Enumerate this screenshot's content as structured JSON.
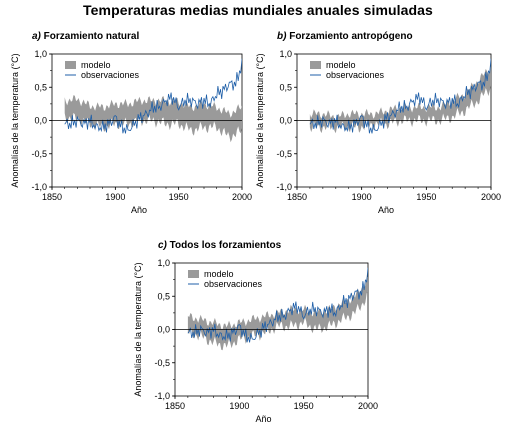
{
  "title": "Temperaturas medias mundiales anuales simuladas",
  "colors": {
    "model": "#9a9a9a",
    "observations": "#1f5fa8"
  },
  "chart_data": [
    {
      "type": "area",
      "panel_letter": "a)",
      "title": "Forzamiento natural",
      "xlabel": "Año",
      "ylabel": "Anomalías de la temperatura (°C)",
      "xlim": [
        1850,
        2000
      ],
      "ylim": [
        -1.0,
        1.0
      ],
      "xticks": [
        "1850",
        "1900",
        "1950",
        "2000"
      ],
      "yticks": [
        "-1,0",
        "-0,5",
        "0,0",
        "0,5",
        "1,0"
      ],
      "legend": [
        "modelo",
        "observaciones"
      ],
      "series": [
        {
          "name": "modelo",
          "kind": "band",
          "x": [
            1860,
            1870,
            1880,
            1890,
            1900,
            1910,
            1920,
            1930,
            1940,
            1950,
            1960,
            1970,
            1980,
            1990,
            2000
          ],
          "lower": [
            0.05,
            0.02,
            -0.05,
            -0.1,
            -0.05,
            -0.05,
            0.0,
            0.0,
            -0.05,
            -0.05,
            -0.15,
            -0.1,
            -0.1,
            -0.25,
            -0.15
          ],
          "upper": [
            0.3,
            0.32,
            0.22,
            0.2,
            0.25,
            0.25,
            0.3,
            0.3,
            0.3,
            0.28,
            0.2,
            0.25,
            0.2,
            0.1,
            0.2
          ]
        },
        {
          "name": "observaciones",
          "kind": "line",
          "x": [
            1860,
            1865,
            1870,
            1875,
            1880,
            1885,
            1890,
            1895,
            1900,
            1905,
            1910,
            1915,
            1920,
            1925,
            1930,
            1935,
            1940,
            1945,
            1950,
            1955,
            1960,
            1965,
            1970,
            1975,
            1980,
            1985,
            1990,
            1995,
            2000
          ],
          "y": [
            -0.05,
            -0.05,
            0.0,
            -0.05,
            0.0,
            -0.1,
            -0.1,
            -0.05,
            0.05,
            -0.1,
            -0.15,
            -0.05,
            0.05,
            0.1,
            0.2,
            0.2,
            0.3,
            0.35,
            0.2,
            0.3,
            0.3,
            0.25,
            0.3,
            0.25,
            0.4,
            0.45,
            0.55,
            0.55,
            0.85
          ]
        }
      ]
    },
    {
      "type": "area",
      "panel_letter": "b)",
      "title": "Forzamiento antropógeno",
      "xlabel": "Año",
      "ylabel": "Anomalías de la temperatura (°C)",
      "xlim": [
        1850,
        2000
      ],
      "ylim": [
        -1.0,
        1.0
      ],
      "xticks": [
        "1850",
        "1900",
        "1950",
        "2000"
      ],
      "yticks": [
        "-1,0",
        "-0,5",
        "0,0",
        "0,5",
        "1,0"
      ],
      "legend": [
        "modelo",
        "observaciones"
      ],
      "series": [
        {
          "name": "modelo",
          "kind": "band",
          "x": [
            1860,
            1870,
            1880,
            1890,
            1900,
            1910,
            1920,
            1930,
            1940,
            1950,
            1960,
            1970,
            1980,
            1990,
            2000
          ],
          "lower": [
            -0.1,
            -0.1,
            -0.1,
            -0.1,
            -0.1,
            -0.05,
            -0.05,
            0.0,
            0.0,
            0.0,
            0.0,
            0.05,
            0.15,
            0.3,
            0.5
          ],
          "upper": [
            0.1,
            0.1,
            0.05,
            0.1,
            0.1,
            0.1,
            0.15,
            0.2,
            0.2,
            0.2,
            0.2,
            0.3,
            0.4,
            0.6,
            0.8
          ]
        },
        {
          "name": "observaciones",
          "kind": "line",
          "x": [
            1860,
            1865,
            1870,
            1875,
            1880,
            1885,
            1890,
            1895,
            1900,
            1905,
            1910,
            1915,
            1920,
            1925,
            1930,
            1935,
            1940,
            1945,
            1950,
            1955,
            1960,
            1965,
            1970,
            1975,
            1980,
            1985,
            1990,
            1995,
            2000
          ],
          "y": [
            -0.05,
            -0.05,
            0.0,
            -0.05,
            0.0,
            -0.1,
            -0.1,
            -0.05,
            0.05,
            -0.1,
            -0.15,
            -0.05,
            0.05,
            0.1,
            0.2,
            0.2,
            0.3,
            0.35,
            0.2,
            0.3,
            0.3,
            0.25,
            0.3,
            0.25,
            0.4,
            0.45,
            0.55,
            0.55,
            0.85
          ]
        }
      ]
    },
    {
      "type": "area",
      "panel_letter": "c)",
      "title": "Todos los forzamientos",
      "xlabel": "Año",
      "ylabel": "Anomalías de la temperatura (°C)",
      "xlim": [
        1850,
        2000
      ],
      "ylim": [
        -1.0,
        1.0
      ],
      "xticks": [
        "1850",
        "1900",
        "1950",
        "2000"
      ],
      "yticks": [
        "-1,0",
        "-0,5",
        "0,0",
        "0,5",
        "1,0"
      ],
      "legend": [
        "modelo",
        "observaciones"
      ],
      "series": [
        {
          "name": "modelo",
          "kind": "band",
          "x": [
            1860,
            1870,
            1880,
            1890,
            1900,
            1910,
            1920,
            1930,
            1940,
            1950,
            1960,
            1970,
            1980,
            1990,
            2000
          ],
          "lower": [
            -0.05,
            -0.1,
            -0.2,
            -0.25,
            -0.15,
            -0.1,
            -0.05,
            0.05,
            0.05,
            0.1,
            0.0,
            0.05,
            0.15,
            0.25,
            0.5
          ],
          "upper": [
            0.2,
            0.15,
            0.1,
            0.05,
            0.1,
            0.15,
            0.2,
            0.25,
            0.3,
            0.3,
            0.25,
            0.3,
            0.4,
            0.5,
            0.75
          ]
        },
        {
          "name": "observaciones",
          "kind": "line",
          "x": [
            1860,
            1865,
            1870,
            1875,
            1880,
            1885,
            1890,
            1895,
            1900,
            1905,
            1910,
            1915,
            1920,
            1925,
            1930,
            1935,
            1940,
            1945,
            1950,
            1955,
            1960,
            1965,
            1970,
            1975,
            1980,
            1985,
            1990,
            1995,
            2000
          ],
          "y": [
            -0.05,
            -0.05,
            0.0,
            -0.05,
            0.0,
            -0.1,
            -0.1,
            -0.05,
            0.05,
            -0.1,
            -0.15,
            -0.05,
            0.05,
            0.1,
            0.2,
            0.2,
            0.3,
            0.35,
            0.2,
            0.3,
            0.3,
            0.25,
            0.3,
            0.25,
            0.4,
            0.45,
            0.55,
            0.55,
            0.85
          ]
        }
      ]
    }
  ]
}
